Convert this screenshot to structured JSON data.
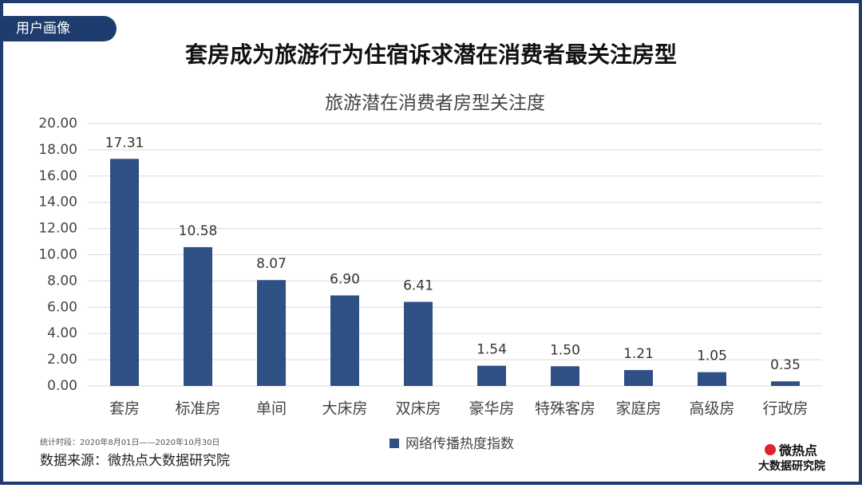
{
  "header": {
    "tag": "用户画像",
    "title": "套房成为旅游行为住宿诉求潜在消费者最关注房型"
  },
  "chart_data": {
    "type": "bar",
    "title": "旅游潜在消费者房型关注度",
    "categories": [
      "套房",
      "标准房",
      "单间",
      "大床房",
      "双床房",
      "豪华房",
      "特殊客房",
      "家庭房",
      "高级房",
      "行政房"
    ],
    "series": [
      {
        "name": "网络传播热度指数",
        "color": "#2e5085",
        "values": [
          17.31,
          10.58,
          8.07,
          6.9,
          6.41,
          1.54,
          1.5,
          1.21,
          1.05,
          0.35
        ],
        "value_labels": [
          "17.31",
          "10.58",
          "8.07",
          "6.90",
          "6.41",
          "1.54",
          "1.50",
          "1.21",
          "1.05",
          "0.35"
        ]
      }
    ],
    "ylim": [
      0,
      20
    ],
    "yticks": [
      {
        "value": 0,
        "label": "0.00"
      },
      {
        "value": 2,
        "label": "2.00"
      },
      {
        "value": 4,
        "label": "4.00"
      },
      {
        "value": 6,
        "label": "6.00"
      },
      {
        "value": 8,
        "label": "8.00"
      },
      {
        "value": 10,
        "label": "10.00"
      },
      {
        "value": 12,
        "label": "12.00"
      },
      {
        "value": 14,
        "label": "14.00"
      },
      {
        "value": 16,
        "label": "16.00"
      },
      {
        "value": 18,
        "label": "18.00"
      },
      {
        "value": 20,
        "label": "20.00"
      }
    ],
    "grid": true
  },
  "footer": {
    "period": "统计时段：2020年8月01日——2020年10月30日",
    "source": "数据来源：微热点大数据研究院",
    "logo_top": "微热点",
    "logo_bottom": "大数据研究院"
  }
}
